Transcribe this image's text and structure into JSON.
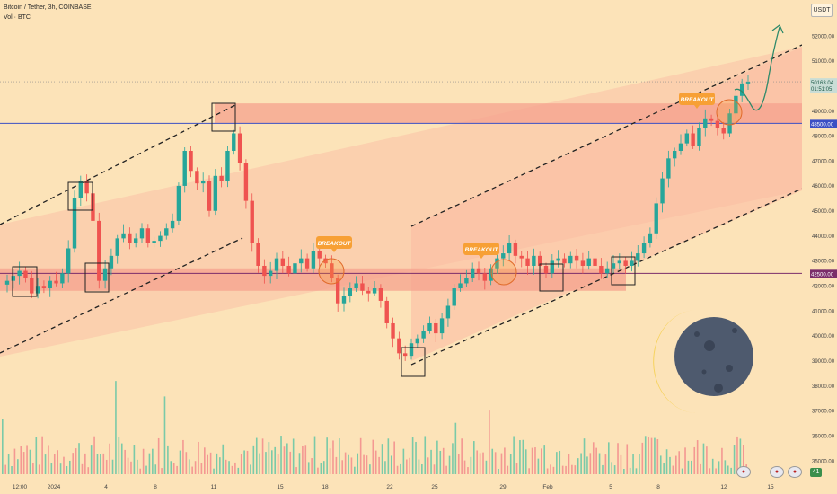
{
  "header": {
    "symbol_line": "Bitcoin / Tether, 3h, COINBASE",
    "volume_line": "Vol · BTC",
    "quote_currency": "USDT"
  },
  "chart_data": {
    "type": "candlestick",
    "symbol": "Bitcoin / Tether",
    "interval": "3h",
    "exchange": "COINBASE",
    "ylim": [
      34500,
      53200
    ],
    "y_ticks": [
      35000,
      36000,
      37000,
      38000,
      39000,
      40000,
      41000,
      42000,
      43000,
      44000,
      45000,
      46000,
      47000,
      48000,
      49000,
      50000,
      51000,
      52000
    ],
    "x_ticks": [
      "12:00",
      "2024",
      "4",
      "8",
      "11",
      "15",
      "18",
      "22",
      "25",
      "29",
      "Feb",
      "5",
      "8",
      "12",
      "15"
    ],
    "last_price": "50163.04",
    "countdown": "01:51:05",
    "levels": [
      {
        "label": "48500.00",
        "value": 48500,
        "color": "#3b4fc4"
      },
      {
        "label": "42500.00",
        "value": 42500,
        "color": "#7a2d6a"
      }
    ],
    "annotations": [
      "BREAKOUT",
      "BREAKOUT",
      "BREAKOUT"
    ],
    "price_path": [
      42200,
      42400,
      42600,
      42300,
      41700,
      42000,
      41900,
      42200,
      42100,
      42500,
      43500,
      45500,
      46200,
      45700,
      44600,
      42200,
      42700,
      43200,
      43900,
      44100,
      43700,
      43900,
      44300,
      43700,
      43800,
      44000,
      44300,
      44600,
      46000,
      47400,
      46600,
      46100,
      46200,
      45000,
      46400,
      46200,
      47400,
      48100,
      46900,
      45400,
      43700,
      42800,
      42400,
      42600,
      43100,
      42800,
      42500,
      42900,
      43100,
      42700,
      43400,
      43100,
      42900,
      42300,
      41300,
      41600,
      41900,
      42100,
      41800,
      41700,
      41900,
      41400,
      40500,
      39900,
      39300,
      39200,
      39700,
      39900,
      40200,
      40500,
      40100,
      40700,
      41200,
      41900,
      42100,
      42300,
      42700,
      42500,
      42200,
      42700,
      43100,
      43300,
      43700,
      43200,
      43100,
      42800,
      43200,
      42800,
      42500,
      43000,
      43100,
      42900,
      43200,
      43000,
      42800,
      43100,
      42800,
      42500,
      42700,
      42900,
      43000,
      42800,
      43000,
      43300,
      43700,
      44100,
      45300,
      46300,
      47100,
      47400,
      47700,
      48100,
      47600,
      48300,
      48700,
      48600,
      48300,
      48100,
      48900,
      49600,
      50100,
      50163
    ],
    "projection": "dips toward the 48500 level, then rebounds up above 52000",
    "colors": {
      "up": "#26a69a",
      "down": "#ef5350",
      "channel": "#fbb9a2",
      "zone": "#f5a18e",
      "projection_arrow": "#2e8a6a",
      "breakout_badge": "#f7a035"
    }
  },
  "footer": {
    "event_count": "41"
  }
}
